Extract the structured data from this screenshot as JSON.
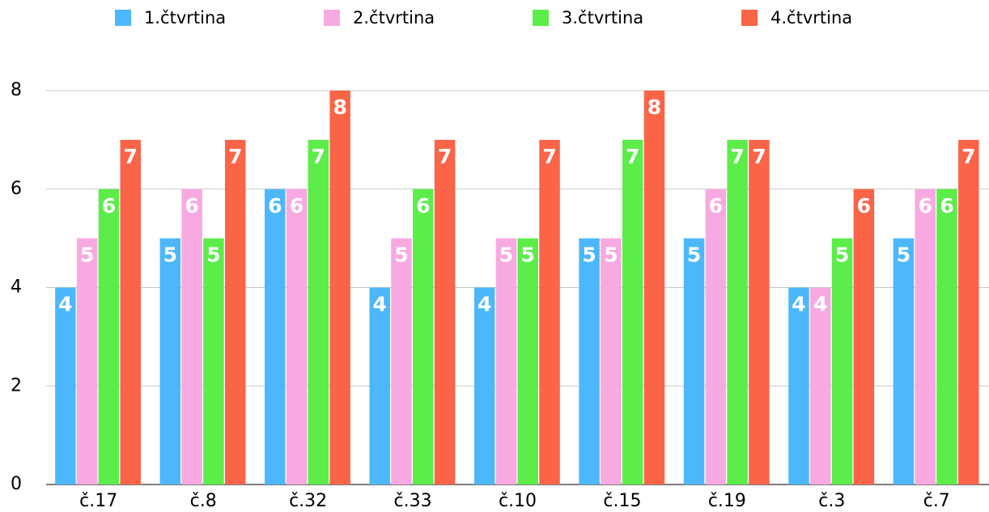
{
  "chart_data": {
    "type": "bar",
    "categories": [
      "č.17",
      "č.8",
      "č.32",
      "č.33",
      "č.10",
      "č.15",
      "č.19",
      "č.3",
      "č.7"
    ],
    "series": [
      {
        "name": "1.čtvrtina",
        "color": "#4cb8fb",
        "values": [
          4,
          5,
          6,
          4,
          4,
          5,
          5,
          4,
          5
        ]
      },
      {
        "name": "2.čtvrtina",
        "color": "#f8a9e2",
        "values": [
          5,
          6,
          6,
          5,
          5,
          5,
          6,
          4,
          6
        ]
      },
      {
        "name": "3.čtvrtina",
        "color": "#5ced4a",
        "values": [
          6,
          5,
          7,
          6,
          5,
          7,
          7,
          5,
          6
        ]
      },
      {
        "name": "4.čtvrtina",
        "color": "#fb6447",
        "values": [
          7,
          7,
          8,
          7,
          7,
          8,
          7,
          6,
          7
        ]
      }
    ],
    "ylim": [
      0,
      8
    ],
    "yticks": [
      0,
      2,
      4,
      6,
      8
    ],
    "grid": true,
    "legend": "top"
  }
}
